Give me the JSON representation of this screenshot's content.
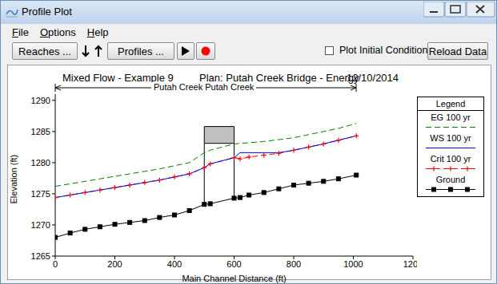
{
  "window": {
    "title": "Profile Plot",
    "menu": [
      "File",
      "Options",
      "Help"
    ],
    "toolbar": {
      "reaches_button": "Reaches ...",
      "profiles_button": "Profiles ...",
      "checkbox": {
        "label": "Plot Initial Conditions",
        "checked": false
      },
      "reload_button": "Reload Data"
    }
  },
  "chart_data": {
    "type": "line",
    "title": "Mixed Flow - Example 9",
    "subtitle": "Plan: Putah Creek Bridge - Energy",
    "date": "12/10/2014",
    "annotations": [
      "Putah Creek Putah Creek"
    ],
    "legend_title": "Legend",
    "legend": "right",
    "grid": false,
    "x_label": "Main Channel Distance (ft)",
    "y_label": "Elevation (ft)",
    "xlim": [
      0,
      1200
    ],
    "xticks": [
      0,
      200,
      400,
      600,
      800,
      1000,
      1200
    ],
    "ylim": [
      1265,
      1291
    ],
    "yticks": [
      1265,
      1270,
      1275,
      1280,
      1285,
      1290
    ],
    "x": [
      0,
      50,
      100,
      150,
      200,
      250,
      300,
      350,
      400,
      450,
      500,
      520,
      600,
      620,
      650,
      700,
      750,
      800,
      850,
      900,
      950,
      1010
    ],
    "series": [
      {
        "name": "EG  100 yr",
        "color": "#008000",
        "line_style": "dashed",
        "marker": "none",
        "values": [
          1276.2,
          1276.6,
          1277.0,
          1277.4,
          1277.8,
          1278.2,
          1278.6,
          1279.0,
          1279.5,
          1280.0,
          1281.6,
          1282.0,
          1283.0,
          1283.1,
          1283.2,
          1283.4,
          1283.7,
          1284.0,
          1284.5,
          1285.0,
          1285.5,
          1286.3
        ]
      },
      {
        "name": "WS  100 yr",
        "color": "#0000ff",
        "line_style": "solid",
        "marker": "none",
        "values": [
          1274.4,
          1274.8,
          1275.2,
          1275.6,
          1276.0,
          1276.4,
          1276.8,
          1277.2,
          1277.7,
          1278.2,
          1279.2,
          1279.8,
          1280.8,
          1281.6,
          1281.6,
          1281.6,
          1281.6,
          1282.0,
          1282.5,
          1283.0,
          1283.6,
          1284.3
        ]
      },
      {
        "name": "Crit  100 yr",
        "color": "#ff0000",
        "line_style": "dashed",
        "marker": "plus",
        "values": [
          1274.4,
          1274.8,
          1275.2,
          1275.6,
          1276.0,
          1276.4,
          1276.8,
          1277.2,
          1277.7,
          1278.2,
          1279.2,
          1279.8,
          1280.8,
          1280.6,
          1280.9,
          1281.2,
          1281.5,
          1282.0,
          1282.5,
          1283.0,
          1283.6,
          1284.3
        ]
      },
      {
        "name": "Ground",
        "color": "#000000",
        "line_style": "solid",
        "marker": "square",
        "values": [
          1268.0,
          1268.7,
          1269.3,
          1269.7,
          1270.1,
          1270.4,
          1270.7,
          1271.2,
          1271.6,
          1272.3,
          1273.3,
          1273.4,
          1274.3,
          1274.4,
          1274.8,
          1275.2,
          1275.8,
          1276.4,
          1276.7,
          1277.0,
          1277.4,
          1278.0
        ]
      }
    ],
    "bridge": {
      "stations": [
        500,
        600
      ],
      "low_chord": 1283.1,
      "high_chord": 1285.8
    }
  }
}
